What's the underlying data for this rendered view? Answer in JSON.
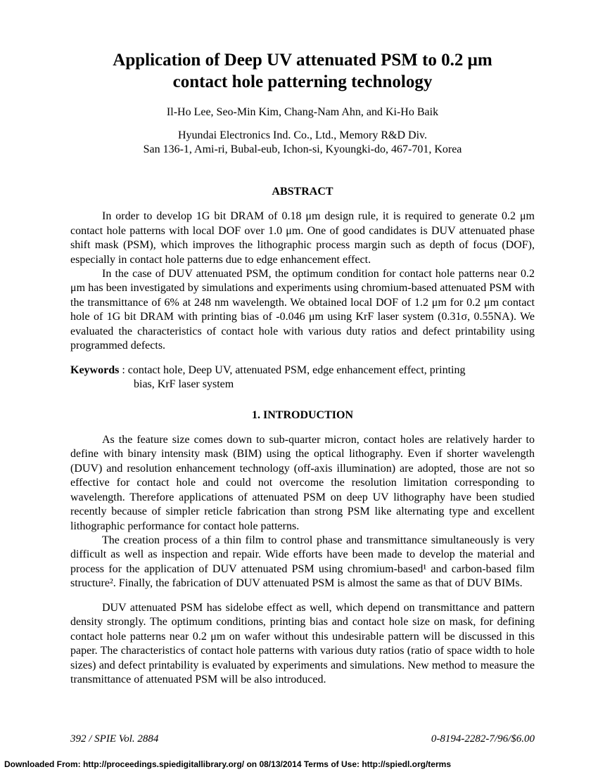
{
  "title_line1": "Application of Deep UV attenuated PSM to 0.2 μm",
  "title_line2": "contact hole patterning technology",
  "authors": "Il-Ho Lee, Seo-Min Kim, Chang-Nam Ahn, and Ki-Ho Baik",
  "affiliation_line1": "Hyundai Electronics Ind. Co., Ltd., Memory R&D Div.",
  "affiliation_line2": "San 136-1, Ami-ri, Bubal-eub, Ichon-si, Kyoungki-do, 467-701, Korea",
  "abstract_heading": "ABSTRACT",
  "abstract_p1": "In order to develop 1G bit DRAM of 0.18 μm design rule, it is required to generate 0.2 μm contact hole patterns with local DOF over 1.0 μm. One of good candidates is DUV attenuated phase shift mask (PSM), which improves the lithographic process margin such as depth of focus (DOF), especially in contact hole patterns due to edge enhancement effect.",
  "abstract_p2": "In the case of DUV attenuated PSM, the optimum condition for contact hole patterns near 0.2 μm has been investigated by simulations and experiments using chromium-based attenuated PSM with the transmittance of 6% at 248 nm wavelength. We obtained local DOF of 1.2 μm for 0.2 μm contact hole of 1G bit DRAM with printing bias of -0.046 μm using KrF laser system (0.31σ, 0.55NA). We evaluated the characteristics of contact hole with various duty ratios and defect printability using programmed defects.",
  "keywords_label": "Keywords",
  "keywords_line1": " : contact hole, Deep UV, attenuated PSM, edge enhancement effect, printing",
  "keywords_line2": "bias, KrF laser system",
  "section1_heading": "1.  INTRODUCTION",
  "intro_p1": "As the feature size comes down to sub-quarter micron, contact holes are relatively harder to define with binary intensity mask (BIM) using the optical lithography. Even if shorter wavelength (DUV) and resolution enhancement technology (off-axis illumination) are adopted, those are not so effective for contact hole and could not overcome the resolution limitation corresponding to wavelength. Therefore applications of attenuated PSM on deep UV lithography have been studied recently because of simpler reticle fabrication than strong PSM like alternating type and excellent lithographic performance for contact hole patterns.",
  "intro_p2": "The creation process of a thin film to control phase and transmittance simultaneously is very difficult as well as inspection and repair. Wide efforts have been made to develop the material and process for the application of DUV attenuated PSM using chromium-based¹ and carbon-based film structure². Finally, the fabrication of DUV attenuated PSM is almost the same as that of DUV BIMs.",
  "intro_p3": "DUV attenuated PSM has sidelobe effect as well, which depend on transmittance and pattern density strongly. The optimum conditions, printing bias and contact hole size on mask, for defining contact hole patterns near 0.2 μm on wafer without this undesirable pattern will be discussed in this paper. The characteristics of contact hole patterns with various duty ratios (ratio of space width to hole sizes) and defect printability is evaluated by experiments and simulations. New method to measure the transmittance of attenuated PSM will be also introduced.",
  "footer_left": "392 / SPIE Vol. 2884",
  "footer_right": "0-8194-2282-7/96/$6.00",
  "download_line": "Downloaded From: http://proceedings.spiedigitallibrary.org/ on 08/13/2014 Terms of Use: http://spiedl.org/terms"
}
